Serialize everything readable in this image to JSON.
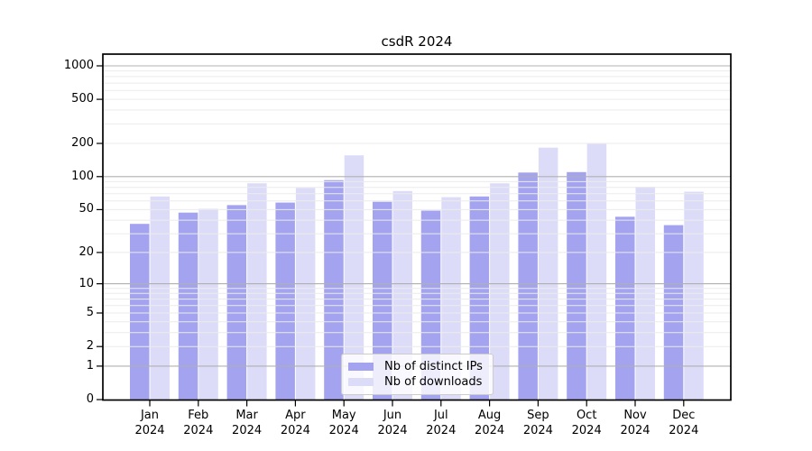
{
  "chart_data": {
    "type": "bar",
    "title": "csdR 2024",
    "x_tick_months": [
      "Jan",
      "Feb",
      "Mar",
      "Apr",
      "May",
      "Jun",
      "Jul",
      "Aug",
      "Sep",
      "Oct",
      "Nov",
      "Dec"
    ],
    "x_tick_year": "2024",
    "categories": [
      "Jan 2024",
      "Feb 2024",
      "Mar 2024",
      "Apr 2024",
      "May 2024",
      "Jun 2024",
      "Jul 2024",
      "Aug 2024",
      "Sep 2024",
      "Oct 2024",
      "Nov 2024",
      "Dec 2024"
    ],
    "series": [
      {
        "name": "Nb of distinct IPs",
        "color": "#a3a3ef",
        "values": [
          37,
          47,
          55,
          58,
          93,
          59,
          49,
          66,
          109,
          110,
          43,
          36
        ]
      },
      {
        "name": "Nb of downloads",
        "color": "#dcdcf8",
        "values": [
          66,
          51,
          87,
          79,
          156,
          74,
          65,
          87,
          183,
          200,
          81,
          73
        ]
      }
    ],
    "y_ticks": [
      0,
      1,
      2,
      5,
      10,
      20,
      50,
      100,
      200,
      500,
      1000
    ],
    "y_scale": "log1p",
    "ylim": [
      0,
      1000
    ],
    "xlabel": "",
    "ylabel": "",
    "grid": true,
    "grid_major_color": "#b0b0b0",
    "grid_minor_color": "#ebebeb",
    "legend": {
      "position": "lower center"
    }
  }
}
